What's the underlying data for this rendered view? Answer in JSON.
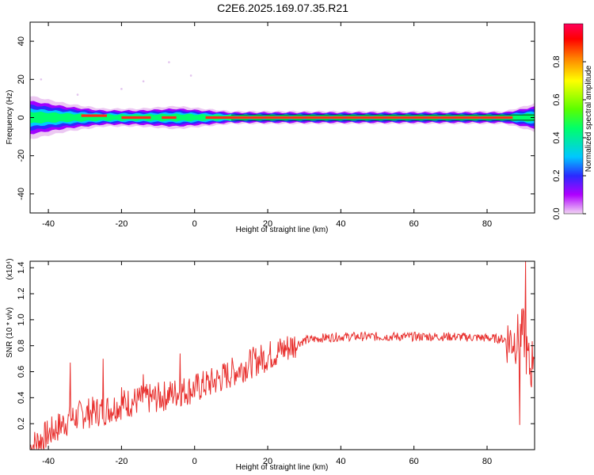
{
  "title": "C2E6.2025.169.07.35.R21",
  "colors": {
    "background": "#ffffff",
    "snr_line": "#e8302e",
    "colorbar": [
      "#f2d6f4",
      "#b000ff",
      "#2a2aff",
      "#00c8ff",
      "#00ff6a",
      "#5aff00",
      "#ffff00",
      "#ff8000",
      "#ff0000",
      "#ff005a"
    ]
  },
  "chart_data": [
    {
      "type": "heatmap",
      "xlabel": "Height of straight line (km)",
      "ylabel": "Frequency (Hz)",
      "xlim": [
        -45,
        93
      ],
      "ylim": [
        -50,
        50
      ],
      "x_ticks": [
        "-40",
        "-20",
        "0",
        "20",
        "40",
        "60",
        "80"
      ],
      "x_tick_values": [
        -40,
        -20,
        0,
        20,
        40,
        60,
        80
      ],
      "y_ticks": [
        "40",
        "20",
        "0",
        "-20",
        "-40"
      ],
      "y_tick_values": [
        40,
        20,
        0,
        -20,
        -40
      ],
      "colorbar": {
        "label": "Normalized spectral amplitude",
        "range": [
          0,
          1
        ],
        "ticks": [
          "0.0",
          "0.2",
          "0.4",
          "0.6",
          "0.8"
        ],
        "tick_values": [
          0,
          0.2,
          0.4,
          0.6,
          0.8
        ]
      },
      "band_center_hz": 0,
      "band_halfwidth_hz": [
        {
          "x": -45,
          "w": 8
        },
        {
          "x": -35,
          "w": 5
        },
        {
          "x": -25,
          "w": 3
        },
        {
          "x": -15,
          "w": 3
        },
        {
          "x": -5,
          "w": 4
        },
        {
          "x": 10,
          "w": 2
        },
        {
          "x": 85,
          "w": 2
        },
        {
          "x": 93,
          "w": 5
        }
      ],
      "peak_segments": [
        {
          "x0": -31,
          "x1": -24,
          "f": 1
        },
        {
          "x0": -20,
          "x1": -12,
          "f": 0
        },
        {
          "x0": -9,
          "x1": -5,
          "f": 0
        },
        {
          "x0": 3,
          "x1": 87,
          "f": 0
        }
      ]
    },
    {
      "type": "line",
      "xlabel": "Height of straight line (km)",
      "ylabel": "SNR (10 * v/v)",
      "multiplier": "(x10⁴)",
      "xlim": [
        -45,
        93
      ],
      "ylim": [
        0,
        1.45
      ],
      "x_ticks": [
        "-40",
        "-20",
        "0",
        "20",
        "40",
        "60",
        "80"
      ],
      "x_tick_values": [
        -40,
        -20,
        0,
        20,
        40,
        60,
        80
      ],
      "y_ticks": [
        "1.4",
        "1.2",
        "1.0",
        "0.8",
        "0.6",
        "0.4",
        "0.2"
      ],
      "y_tick_values": [
        1.4,
        1.2,
        1.0,
        0.8,
        0.6,
        0.4,
        0.2
      ],
      "series": [
        {
          "trend": {
            "x": [
              -45,
              -40,
              -35,
              -30,
              -25,
              -20,
              -15,
              -10,
              -5,
              0,
              5,
              10,
              15,
              20,
              25,
              30,
              35,
              40,
              50,
              60,
              70,
              80,
              85,
              88,
              90,
              91,
              92,
              93
            ],
            "y": [
              0.02,
              0.12,
              0.22,
              0.28,
              0.3,
              0.35,
              0.38,
              0.4,
              0.44,
              0.47,
              0.52,
              0.59,
              0.66,
              0.72,
              0.78,
              0.84,
              0.86,
              0.87,
              0.87,
              0.87,
              0.87,
              0.86,
              0.85,
              0.85,
              0.9,
              0.7,
              0.6,
              0.85
            ]
          },
          "spikes": [
            {
              "x": -34,
              "y": 0.67
            },
            {
              "x": -25,
              "y": 0.7
            },
            {
              "x": -20,
              "y": 0.48
            },
            {
              "x": -14,
              "y": 0.58
            },
            {
              "x": -4,
              "y": 0.74
            },
            {
              "x": 89,
              "y": 0.19
            },
            {
              "x": 90.5,
              "y": 1.45
            },
            {
              "x": 92,
              "y": 0.5
            }
          ]
        }
      ]
    }
  ]
}
